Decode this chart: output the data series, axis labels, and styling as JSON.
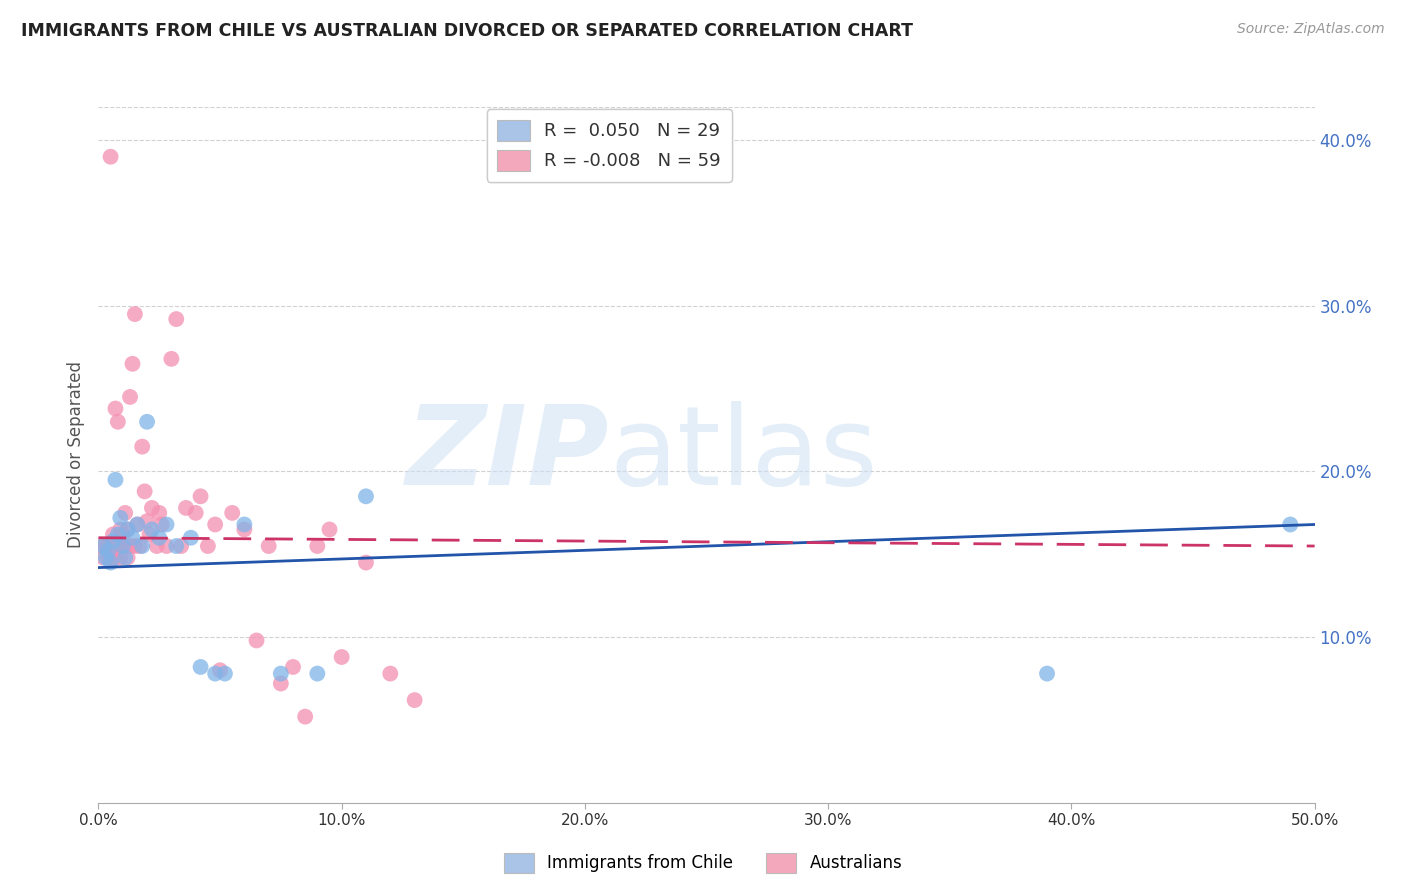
{
  "title": "IMMIGRANTS FROM CHILE VS AUSTRALIAN DIVORCED OR SEPARATED CORRELATION CHART",
  "source": "Source: ZipAtlas.com",
  "ylabel": "Divorced or Separated",
  "xmin": 0.0,
  "xmax": 0.5,
  "ymin": 0.0,
  "ymax": 0.42,
  "xticks": [
    0.0,
    0.1,
    0.2,
    0.3,
    0.4,
    0.5
  ],
  "xtick_labels": [
    "0.0%",
    "10.0%",
    "20.0%",
    "30.0%",
    "40.0%",
    "50.0%"
  ],
  "yticks_right": [
    0.1,
    0.2,
    0.3,
    0.4
  ],
  "ytick_labels_right": [
    "10.0%",
    "20.0%",
    "30.0%",
    "40.0%"
  ],
  "legend_label1": "R =  0.050   N = 29",
  "legend_label2": "R = -0.008   N = 59",
  "legend_color1": "#aac4e8",
  "legend_color2": "#f4a8bc",
  "blue_scatter_x": [
    0.002,
    0.003,
    0.004,
    0.005,
    0.006,
    0.007,
    0.008,
    0.009,
    0.01,
    0.011,
    0.012,
    0.014,
    0.016,
    0.018,
    0.02,
    0.022,
    0.025,
    0.028,
    0.032,
    0.038,
    0.042,
    0.048,
    0.052,
    0.06,
    0.075,
    0.09,
    0.11,
    0.39,
    0.49
  ],
  "blue_scatter_y": [
    0.155,
    0.148,
    0.152,
    0.145,
    0.158,
    0.195,
    0.162,
    0.172,
    0.155,
    0.148,
    0.165,
    0.16,
    0.168,
    0.155,
    0.23,
    0.165,
    0.16,
    0.168,
    0.155,
    0.16,
    0.082,
    0.078,
    0.078,
    0.168,
    0.078,
    0.078,
    0.185,
    0.078,
    0.168
  ],
  "pink_scatter_x": [
    0.001,
    0.002,
    0.003,
    0.004,
    0.004,
    0.005,
    0.005,
    0.006,
    0.006,
    0.007,
    0.007,
    0.008,
    0.008,
    0.009,
    0.009,
    0.01,
    0.01,
    0.011,
    0.011,
    0.012,
    0.012,
    0.013,
    0.013,
    0.014,
    0.015,
    0.015,
    0.016,
    0.017,
    0.018,
    0.019,
    0.02,
    0.021,
    0.022,
    0.024,
    0.025,
    0.026,
    0.028,
    0.03,
    0.032,
    0.034,
    0.036,
    0.04,
    0.042,
    0.045,
    0.048,
    0.05,
    0.055,
    0.06,
    0.065,
    0.07,
    0.075,
    0.08,
    0.085,
    0.09,
    0.095,
    0.1,
    0.11,
    0.12,
    0.13
  ],
  "pink_scatter_y": [
    0.155,
    0.148,
    0.155,
    0.148,
    0.155,
    0.39,
    0.148,
    0.162,
    0.15,
    0.238,
    0.148,
    0.155,
    0.23,
    0.165,
    0.148,
    0.162,
    0.155,
    0.175,
    0.155,
    0.165,
    0.148,
    0.245,
    0.155,
    0.265,
    0.295,
    0.155,
    0.168,
    0.155,
    0.215,
    0.188,
    0.17,
    0.162,
    0.178,
    0.155,
    0.175,
    0.168,
    0.155,
    0.268,
    0.292,
    0.155,
    0.178,
    0.175,
    0.185,
    0.155,
    0.168,
    0.08,
    0.175,
    0.165,
    0.098,
    0.155,
    0.072,
    0.082,
    0.052,
    0.155,
    0.165,
    0.088,
    0.145,
    0.078,
    0.062
  ],
  "blue_line_x": [
    0.0,
    0.5
  ],
  "blue_line_y_start": 0.142,
  "blue_line_y_end": 0.168,
  "pink_line_x": [
    0.0,
    0.5
  ],
  "pink_line_y_start": 0.16,
  "pink_line_y_end": 0.155,
  "background_color": "#ffffff",
  "grid_color": "#cccccc",
  "title_color": "#222222",
  "right_axis_color": "#4472c4",
  "scatter_blue": "#7fb3e8",
  "scatter_pink": "#f48fb1",
  "line_blue": "#2255aa",
  "line_pink": "#cc3366"
}
